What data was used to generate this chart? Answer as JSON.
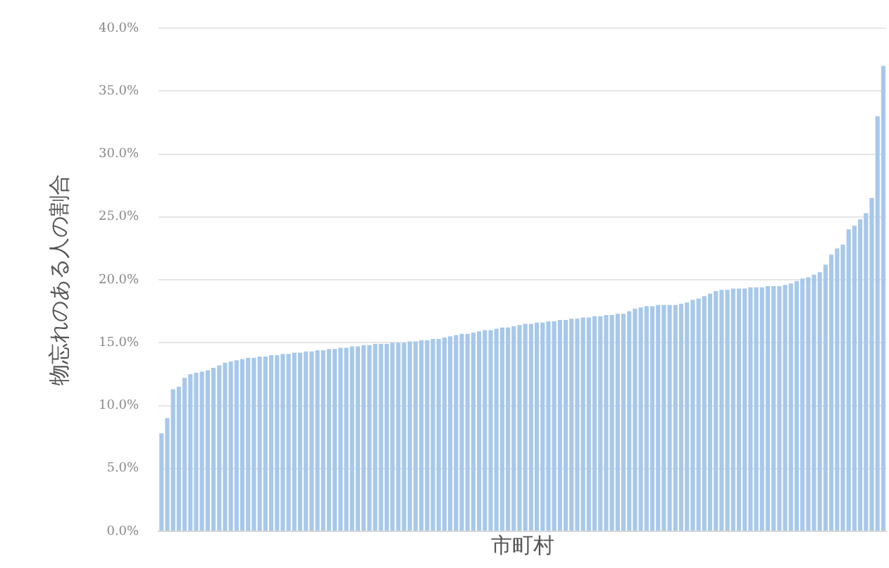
{
  "chart_data": {
    "type": "bar",
    "xlabel": "市町村",
    "ylabel": "物忘れのある人の割合",
    "categories": [
      null,
      null,
      null,
      null,
      null,
      null,
      null,
      null,
      null,
      null,
      null,
      null,
      null,
      null,
      null,
      null,
      null,
      null,
      null,
      null,
      null,
      null,
      null,
      null,
      null,
      null,
      null,
      null,
      null,
      null,
      null,
      null,
      null,
      null,
      null,
      null,
      null,
      null,
      null,
      null,
      null,
      null,
      null,
      null,
      null,
      null,
      null,
      null,
      null,
      null,
      null,
      null,
      null,
      null,
      null,
      null,
      null,
      null,
      null,
      null,
      null,
      null,
      null,
      null,
      null,
      null,
      null,
      null,
      null,
      null,
      null,
      null,
      null,
      null,
      null,
      null,
      null,
      null,
      null,
      null,
      null,
      null,
      null,
      null,
      null,
      null,
      null,
      null,
      null,
      null,
      null,
      null,
      null,
      null,
      null,
      null,
      null,
      null,
      null,
      null,
      null,
      null,
      null,
      null,
      null,
      null,
      null,
      null,
      null,
      null,
      null,
      null,
      null,
      null,
      null,
      null,
      null,
      null,
      null,
      null,
      null,
      null,
      null,
      null,
      null,
      null
    ],
    "values": [
      7.8,
      9.0,
      11.3,
      11.5,
      12.2,
      12.5,
      12.6,
      12.7,
      12.8,
      13.0,
      13.2,
      13.4,
      13.5,
      13.6,
      13.7,
      13.8,
      13.8,
      13.9,
      13.9,
      14.0,
      14.0,
      14.1,
      14.1,
      14.2,
      14.2,
      14.3,
      14.3,
      14.4,
      14.4,
      14.5,
      14.5,
      14.6,
      14.6,
      14.7,
      14.7,
      14.8,
      14.8,
      14.9,
      14.9,
      14.9,
      15.0,
      15.0,
      15.0,
      15.1,
      15.1,
      15.2,
      15.2,
      15.3,
      15.3,
      15.4,
      15.5,
      15.6,
      15.7,
      15.7,
      15.8,
      15.9,
      16.0,
      16.0,
      16.1,
      16.2,
      16.2,
      16.3,
      16.4,
      16.5,
      16.5,
      16.6,
      16.6,
      16.7,
      16.7,
      16.8,
      16.8,
      16.9,
      16.9,
      17.0,
      17.0,
      17.1,
      17.1,
      17.2,
      17.2,
      17.3,
      17.3,
      17.5,
      17.7,
      17.8,
      17.9,
      17.9,
      18.0,
      18.0,
      18.0,
      18.0,
      18.1,
      18.2,
      18.4,
      18.5,
      18.7,
      18.9,
      19.1,
      19.2,
      19.2,
      19.3,
      19.3,
      19.3,
      19.4,
      19.4,
      19.4,
      19.5,
      19.5,
      19.5,
      19.6,
      19.7,
      19.9,
      20.1,
      20.2,
      20.4,
      20.6,
      21.2,
      22.0,
      22.5,
      22.8,
      24.0,
      24.3,
      24.8,
      25.3,
      26.5,
      33.0,
      37.0
    ],
    "color": "#a7c8ea",
    "ylim": [
      0,
      40
    ],
    "yticks": [
      {
        "value": 0,
        "label": "0.0%"
      },
      {
        "value": 5,
        "label": "5.0%"
      },
      {
        "value": 10,
        "label": "10.0%"
      },
      {
        "value": 15,
        "label": "15.0%"
      },
      {
        "value": 20,
        "label": "20.0%"
      },
      {
        "value": 25,
        "label": "25.0%"
      },
      {
        "value": 30,
        "label": "30.0%"
      },
      {
        "value": 35,
        "label": "35.0%"
      },
      {
        "value": 40,
        "label": "40.0%"
      }
    ],
    "grid": "y"
  }
}
